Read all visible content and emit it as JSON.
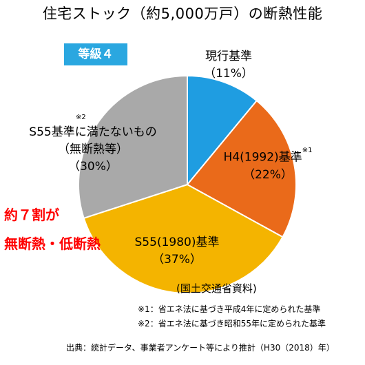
{
  "title": "住宅ストック（約5,000万戸）の断熱性能",
  "grade_badge": "等級４",
  "colors": {
    "badge": "#2aa7e0",
    "callout": "#ff0000"
  },
  "chart_data": {
    "type": "pie",
    "title": "住宅ストック（約5,000万戸）の断熱性能",
    "slices": [
      {
        "label": "現行基準",
        "value": 11,
        "display": "（11%）",
        "color": "#1f9de1"
      },
      {
        "label": "H4(1992)基準",
        "value": 22,
        "display": "（22%）",
        "color": "#ea6a1a",
        "note": "※1"
      },
      {
        "label": "S55(1980)基準",
        "value": 37,
        "display": "（37%）",
        "color": "#f4b400"
      },
      {
        "label": "S55基準に満たないもの",
        "sublabel": "（無断熱等）",
        "value": 30,
        "display": "（30%）",
        "color": "#a9a9a9",
        "note": "※2"
      }
    ],
    "start_angle_deg": 0,
    "direction": "clockwise"
  },
  "callout": {
    "line1": "約７割が",
    "line2": "無断熱・低断熱"
  },
  "source_note": "(国土交通省資料)",
  "footnotes": [
    "※1：省エネ法に基づき平成4年に定められた基準",
    "※2：省エネ法に基づき昭和55年に定められた基準"
  ],
  "credit": "出典：統計データ、事業者アンケート等により推計（H30（2018）年）"
}
